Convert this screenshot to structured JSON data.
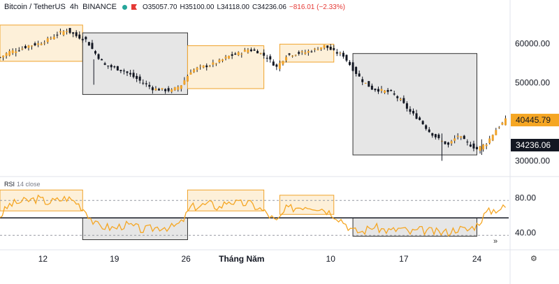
{
  "header": {
    "symbol": "Bitcoin / TetherUS",
    "interval": "4h",
    "exchange": "BINANCE",
    "open": "O35057.70",
    "high": "H35100.00",
    "low": "L34118.00",
    "close": "C34236.06",
    "change": "−816.01 (−2.33%)"
  },
  "rsi_panel": {
    "title": "RSI",
    "params": "14 close"
  },
  "colors": {
    "candle": "#131722",
    "candle_up_accent": "#f0a32b",
    "rsi_line": "#f5a623",
    "bull_zone_fill": "#fdf0d9",
    "bull_zone_border": "#f0a32b",
    "bear_zone_fill": "#e6e6e6",
    "bear_zone_border": "#333333",
    "current_price_bg": "#f5a623",
    "last_close_bg": "#131722"
  },
  "chart_data": [
    {
      "type": "candlestick",
      "title": "Bitcoin / TetherUS 4h BINANCE",
      "x_ticks": [
        "12",
        "19",
        "26",
        "Tháng Năm",
        "10",
        "17",
        "24"
      ],
      "y_ticks": [
        "60000.00",
        "50000.00",
        "40000.00",
        "30000.00"
      ],
      "ylim": [
        26500,
        68000
      ],
      "current_price_label": "40445.79",
      "last_close_label": "34236.06",
      "close_path": [
        [
          0,
          56500
        ],
        [
          6,
          58000
        ],
        [
          12,
          58500
        ],
        [
          18,
          59500
        ],
        [
          24,
          60000
        ],
        [
          30,
          61000
        ],
        [
          36,
          62500
        ],
        [
          42,
          63500
        ],
        [
          48,
          62000
        ],
        [
          54,
          61000
        ],
        [
          60,
          57500
        ],
        [
          66,
          54500
        ],
        [
          72,
          53800
        ],
        [
          78,
          53000
        ],
        [
          84,
          51500
        ],
        [
          90,
          50000
        ],
        [
          96,
          48500
        ],
        [
          102,
          48200
        ],
        [
          108,
          48000
        ],
        [
          114,
          49500
        ],
        [
          120,
          53000
        ],
        [
          126,
          54000
        ],
        [
          132,
          54500
        ],
        [
          138,
          55500
        ],
        [
          144,
          56800
        ],
        [
          150,
          57500
        ],
        [
          156,
          58500
        ],
        [
          162,
          58000
        ],
        [
          168,
          56500
        ],
        [
          174,
          54000
        ],
        [
          180,
          57000
        ],
        [
          186,
          57500
        ],
        [
          192,
          57800
        ],
        [
          198,
          58500
        ],
        [
          204,
          59500
        ],
        [
          210,
          58000
        ],
        [
          216,
          57000
        ],
        [
          222,
          53500
        ],
        [
          228,
          50500
        ],
        [
          234,
          48500
        ],
        [
          240,
          48000
        ],
        [
          246,
          47500
        ],
        [
          252,
          45500
        ],
        [
          258,
          42500
        ],
        [
          264,
          40500
        ],
        [
          270,
          37500
        ],
        [
          276,
          35500
        ],
        [
          282,
          34000
        ],
        [
          288,
          36500
        ],
        [
          294,
          34500
        ],
        [
          300,
          33000
        ],
        [
          306,
          34500
        ],
        [
          312,
          38000
        ],
        [
          318,
          40445
        ]
      ],
      "zones": [
        {
          "kind": "bull",
          "x": [
            0,
            52
          ],
          "y": [
            55500,
            64800
          ]
        },
        {
          "kind": "bear",
          "x": [
            52,
            118
          ],
          "y": [
            47000,
            62800
          ]
        },
        {
          "kind": "bull",
          "x": [
            118,
            166
          ],
          "y": [
            48500,
            59500
          ]
        },
        {
          "kind": "bull",
          "x": [
            176,
            210
          ],
          "y": [
            55300,
            59900
          ]
        },
        {
          "kind": "bear",
          "x": [
            222,
            300
          ],
          "y": [
            31500,
            57500
          ]
        }
      ]
    },
    {
      "type": "line",
      "title": "RSI 14 close",
      "y_ticks": [
        "80.00",
        "40.00"
      ],
      "ylim": [
        15,
        95
      ],
      "hlines": [
        70,
        50,
        30
      ],
      "path": [
        [
          0,
          52
        ],
        [
          6,
          65
        ],
        [
          12,
          68
        ],
        [
          18,
          70
        ],
        [
          24,
          72
        ],
        [
          30,
          68
        ],
        [
          36,
          70
        ],
        [
          42,
          73
        ],
        [
          48,
          68
        ],
        [
          54,
          58
        ],
        [
          60,
          42
        ],
        [
          66,
          40
        ],
        [
          72,
          38
        ],
        [
          78,
          42
        ],
        [
          84,
          40
        ],
        [
          90,
          36
        ],
        [
          96,
          38
        ],
        [
          102,
          40
        ],
        [
          108,
          39
        ],
        [
          114,
          44
        ],
        [
          120,
          62
        ],
        [
          126,
          64
        ],
        [
          132,
          66
        ],
        [
          138,
          62
        ],
        [
          144,
          70
        ],
        [
          150,
          66
        ],
        [
          156,
          67
        ],
        [
          162,
          62
        ],
        [
          168,
          55
        ],
        [
          174,
          45
        ],
        [
          180,
          60
        ],
        [
          186,
          62
        ],
        [
          192,
          64
        ],
        [
          198,
          63
        ],
        [
          204,
          60
        ],
        [
          210,
          54
        ],
        [
          216,
          46
        ],
        [
          222,
          35
        ],
        [
          228,
          34
        ],
        [
          234,
          40
        ],
        [
          240,
          37
        ],
        [
          246,
          35
        ],
        [
          252,
          38
        ],
        [
          258,
          33
        ],
        [
          264,
          36
        ],
        [
          270,
          35
        ],
        [
          276,
          33
        ],
        [
          282,
          34
        ],
        [
          288,
          38
        ],
        [
          294,
          36
        ],
        [
          300,
          42
        ],
        [
          306,
          56
        ],
        [
          312,
          60
        ],
        [
          318,
          62
        ]
      ],
      "zones": [
        {
          "kind": "bull",
          "x": [
            0,
            52
          ],
          "y": [
            58,
            82
          ]
        },
        {
          "kind": "bear",
          "x": [
            52,
            118
          ],
          "y": [
            25,
            50
          ]
        },
        {
          "kind": "bull",
          "x": [
            118,
            166
          ],
          "y": [
            58,
            82
          ]
        },
        {
          "kind": "bull",
          "x": [
            176,
            210
          ],
          "y": [
            54,
            76
          ]
        },
        {
          "kind": "bear",
          "x": [
            222,
            300
          ],
          "y": [
            29,
            50
          ]
        }
      ]
    }
  ]
}
